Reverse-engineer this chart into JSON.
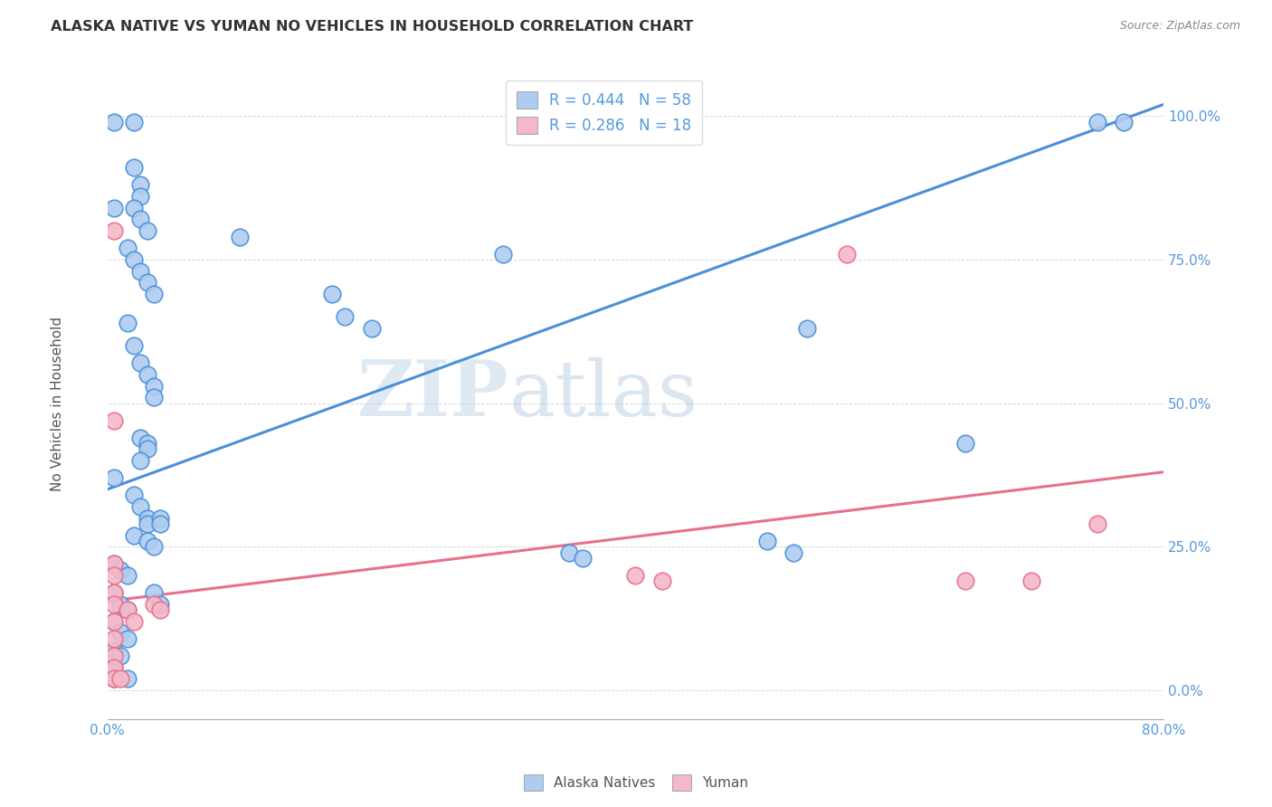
{
  "title": "ALASKA NATIVE VS YUMAN NO VEHICLES IN HOUSEHOLD CORRELATION CHART",
  "source": "Source: ZipAtlas.com",
  "ylabel": "No Vehicles in Household",
  "ytick_labels": [
    "0.0%",
    "25.0%",
    "50.0%",
    "75.0%",
    "100.0%"
  ],
  "ytick_values": [
    0.0,
    0.25,
    0.5,
    0.75,
    1.0
  ],
  "xmin": 0.0,
  "xmax": 0.8,
  "ymin": -0.05,
  "ymax": 1.08,
  "watermark_zip": "ZIP",
  "watermark_atlas": "atlas",
  "blue_color": "#aeccf0",
  "pink_color": "#f5b8c8",
  "line_blue": "#4a90d9",
  "line_pink": "#e8708a",
  "tick_color": "#5599dd",
  "blue_scatter": [
    [
      0.005,
      0.99
    ],
    [
      0.02,
      0.99
    ],
    [
      0.02,
      0.91
    ],
    [
      0.025,
      0.88
    ],
    [
      0.025,
      0.86
    ],
    [
      0.02,
      0.84
    ],
    [
      0.025,
      0.82
    ],
    [
      0.03,
      0.8
    ],
    [
      0.015,
      0.77
    ],
    [
      0.02,
      0.75
    ],
    [
      0.025,
      0.73
    ],
    [
      0.03,
      0.71
    ],
    [
      0.035,
      0.69
    ],
    [
      0.015,
      0.64
    ],
    [
      0.02,
      0.6
    ],
    [
      0.025,
      0.57
    ],
    [
      0.03,
      0.55
    ],
    [
      0.035,
      0.53
    ],
    [
      0.035,
      0.51
    ],
    [
      0.005,
      0.84
    ],
    [
      0.025,
      0.44
    ],
    [
      0.03,
      0.43
    ],
    [
      0.03,
      0.42
    ],
    [
      0.025,
      0.4
    ],
    [
      0.005,
      0.37
    ],
    [
      0.02,
      0.34
    ],
    [
      0.025,
      0.32
    ],
    [
      0.03,
      0.3
    ],
    [
      0.03,
      0.29
    ],
    [
      0.04,
      0.3
    ],
    [
      0.04,
      0.29
    ],
    [
      0.02,
      0.27
    ],
    [
      0.03,
      0.26
    ],
    [
      0.035,
      0.25
    ],
    [
      0.005,
      0.22
    ],
    [
      0.01,
      0.21
    ],
    [
      0.015,
      0.2
    ],
    [
      0.005,
      0.17
    ],
    [
      0.01,
      0.15
    ],
    [
      0.015,
      0.14
    ],
    [
      0.005,
      0.12
    ],
    [
      0.01,
      0.1
    ],
    [
      0.015,
      0.09
    ],
    [
      0.005,
      0.07
    ],
    [
      0.01,
      0.06
    ],
    [
      0.005,
      0.04
    ],
    [
      0.005,
      0.02
    ],
    [
      0.015,
      0.02
    ],
    [
      0.035,
      0.17
    ],
    [
      0.04,
      0.15
    ],
    [
      0.1,
      0.79
    ],
    [
      0.17,
      0.69
    ],
    [
      0.18,
      0.65
    ],
    [
      0.2,
      0.63
    ],
    [
      0.3,
      0.76
    ],
    [
      0.35,
      0.24
    ],
    [
      0.36,
      0.23
    ],
    [
      0.5,
      0.26
    ],
    [
      0.52,
      0.24
    ],
    [
      0.53,
      0.63
    ],
    [
      0.65,
      0.43
    ],
    [
      0.75,
      0.99
    ],
    [
      0.77,
      0.99
    ]
  ],
  "pink_scatter": [
    [
      0.005,
      0.8
    ],
    [
      0.005,
      0.47
    ],
    [
      0.005,
      0.22
    ],
    [
      0.005,
      0.2
    ],
    [
      0.005,
      0.17
    ],
    [
      0.005,
      0.15
    ],
    [
      0.005,
      0.12
    ],
    [
      0.005,
      0.09
    ],
    [
      0.005,
      0.06
    ],
    [
      0.005,
      0.04
    ],
    [
      0.005,
      0.02
    ],
    [
      0.01,
      0.02
    ],
    [
      0.015,
      0.14
    ],
    [
      0.02,
      0.12
    ],
    [
      0.035,
      0.15
    ],
    [
      0.04,
      0.14
    ],
    [
      0.4,
      0.2
    ],
    [
      0.42,
      0.19
    ],
    [
      0.56,
      0.76
    ],
    [
      0.65,
      0.19
    ],
    [
      0.7,
      0.19
    ],
    [
      0.75,
      0.29
    ]
  ],
  "blue_line_x": [
    0.0,
    0.8
  ],
  "blue_line_y": [
    0.35,
    1.02
  ],
  "pink_line_x": [
    0.0,
    0.8
  ],
  "pink_line_y": [
    0.155,
    0.38
  ]
}
